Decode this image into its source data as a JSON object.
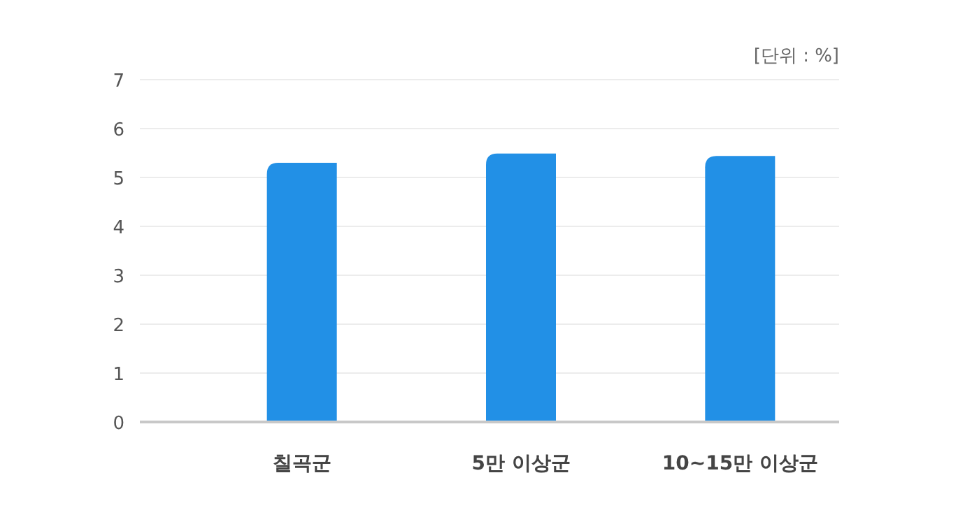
{
  "chart_data": {
    "type": "bar",
    "categories": [
      "칠곡군",
      "5만 이상군",
      "10~15만 이상군"
    ],
    "values": [
      5.3,
      5.49,
      5.44
    ],
    "color": "#2290e6",
    "ylim": [
      0,
      7
    ],
    "yticks": [
      0,
      1,
      2,
      3,
      4,
      5,
      6,
      7
    ],
    "grid": "y",
    "annotations": [
      "[단위 : %]"
    ]
  }
}
